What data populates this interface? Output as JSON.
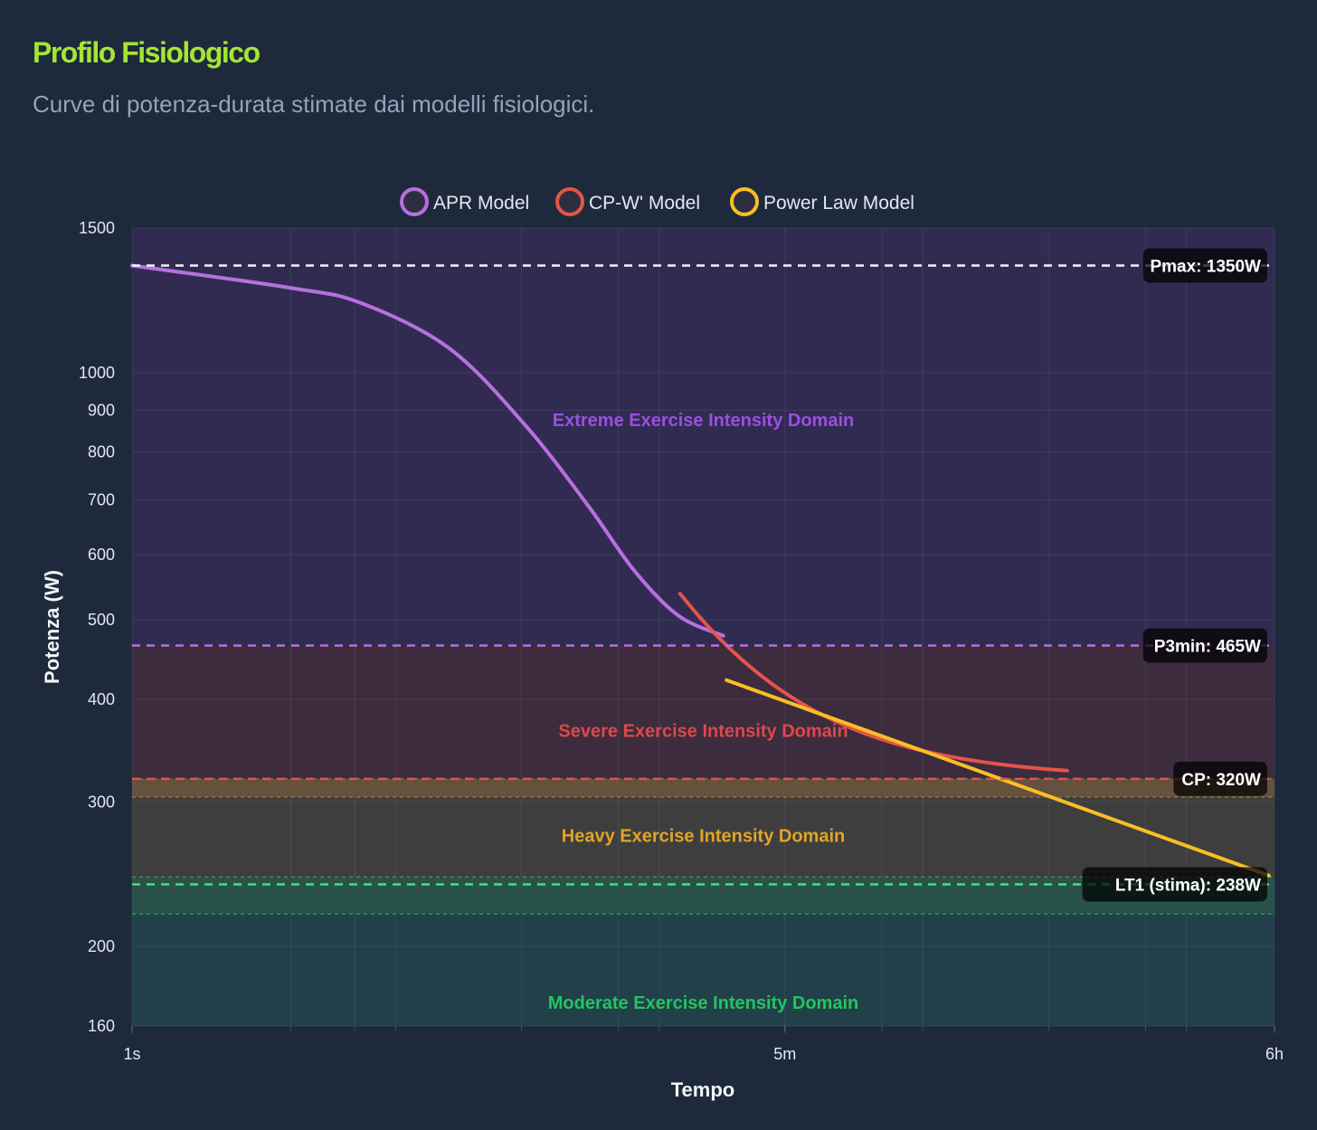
{
  "header": {
    "title": "Profilo Fisiologico",
    "subtitle": "Curve di potenza-durata stimate dai modelli fisiologici."
  },
  "chart_data": {
    "type": "line",
    "x_scale": "log",
    "y_scale": "log",
    "xlabel": "Tempo",
    "ylabel": "Potenza (W)",
    "xlim": [
      1,
      21600
    ],
    "ylim": [
      160,
      1500
    ],
    "x_ticks": [
      {
        "value": 1,
        "label": "1s"
      },
      {
        "value": 300,
        "label": "5m"
      },
      {
        "value": 21600,
        "label": "6h"
      }
    ],
    "x_grid": [
      1,
      4,
      7,
      10,
      30,
      70,
      100,
      300,
      700,
      1000,
      3000,
      7000,
      10000,
      21600
    ],
    "y_ticks": [
      1500,
      1000,
      900,
      800,
      700,
      600,
      500,
      400,
      300,
      200,
      160
    ],
    "grid": true,
    "legend_position": "top-center",
    "legend": [
      {
        "name": "APR Model",
        "color": "#b86fe0"
      },
      {
        "name": "CP-W' Model",
        "color": "#e5534b"
      },
      {
        "name": "Power Law Model",
        "color": "#fbbf24"
      }
    ],
    "series": [
      {
        "name": "APR Model",
        "color": "#b86fe0",
        "points": [
          [
            1,
            1350
          ],
          [
            4,
            1268
          ],
          [
            7.4,
            1215
          ],
          [
            16,
            1070
          ],
          [
            31,
            863
          ],
          [
            54,
            687
          ],
          [
            80,
            575
          ],
          [
            118,
            506
          ],
          [
            175,
            478
          ]
        ]
      },
      {
        "name": "CP-W' Model",
        "color": "#e5534b",
        "cp": 320,
        "w_prime": 26160,
        "t_range": [
          120,
          3530
        ]
      },
      {
        "name": "Power Law Model",
        "color": "#fbbf24",
        "points": [
          [
            180,
            422
          ],
          [
            20560,
            244
          ]
        ]
      }
    ],
    "domains": [
      {
        "label": "Extreme Exercise Intensity Domain",
        "from": 465,
        "to": 1500,
        "fill": "#312b52",
        "text_color": "#9b4fe0",
        "label_value": 860
      },
      {
        "label": "Severe Exercise Intensity Domain",
        "from": 320,
        "to": 465,
        "fill": "#3c2c3e",
        "text_color": "#e0474a",
        "label_value": 360
      },
      {
        "label": "Heavy Exercise Intensity Domain",
        "from": 238,
        "to": 320,
        "fill": "#3f3e3f",
        "text_color": "#e0a526",
        "label_value": 268
      },
      {
        "label": "Moderate Exercise Intensity Domain",
        "from": 160,
        "to": 238,
        "fill": "#21404a",
        "text_color": "#22c55e",
        "label_value": 168
      }
    ],
    "bands": [
      {
        "from": 304,
        "to": 320,
        "fill": "#6b553e",
        "line": "#e0a050"
      },
      {
        "from": 219,
        "to": 243,
        "fill": "#29564a",
        "line": "#4ade80"
      }
    ],
    "reference_lines": [
      {
        "label": "Pmax: 1350W",
        "value": 1350,
        "color": "#f1f5f9"
      },
      {
        "label": "P3min: 465W",
        "value": 465,
        "color": "#b86fe0"
      },
      {
        "label": "CP: 320W",
        "value": 320,
        "color": "#e5534b"
      },
      {
        "label": "LT1 (stima): 238W",
        "value": 238,
        "color": "#4ade80"
      }
    ]
  }
}
